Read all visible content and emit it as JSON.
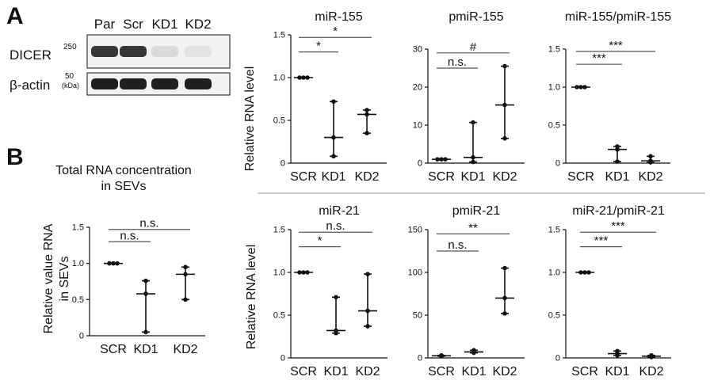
{
  "panel_labels": {
    "a": "A",
    "b": "B"
  },
  "blot": {
    "lane_labels": [
      "Par",
      "Scr",
      "KD1",
      "KD2"
    ],
    "bands": [
      {
        "name": "DICER",
        "marker": "250",
        "intensity": [
          0.85,
          0.85,
          0.12,
          0.08
        ]
      },
      {
        "name": "β-actin",
        "marker": "50",
        "intensity": [
          0.95,
          0.95,
          0.95,
          0.95
        ]
      }
    ],
    "unit": "(kDa)"
  },
  "section_b_title": [
    "Total RNA concentration",
    "in SEVs"
  ],
  "ylabels": {
    "top": "Relative RNA level",
    "bottom": "Relative RNA level",
    "total": [
      "Relative value RNA",
      "in SEVs"
    ]
  },
  "chart_data": [
    {
      "id": "mir155",
      "type": "scatter",
      "title": "miR-155",
      "categories": [
        "SCR",
        "KD1",
        "KD2"
      ],
      "ylim": [
        0,
        1.5
      ],
      "yticks": [
        0,
        0.5,
        1.0,
        1.5
      ],
      "ytick_labels": [
        "0",
        "0.5",
        "1.0",
        "1.5"
      ],
      "series": [
        {
          "name": "SCR",
          "values": [
            1.0,
            1.0,
            1.0
          ],
          "median": 1.0,
          "min": 1.0,
          "max": 1.0
        },
        {
          "name": "KD1",
          "values": [
            0.08,
            0.3,
            0.72
          ],
          "median": 0.3,
          "min": 0.08,
          "max": 0.72
        },
        {
          "name": "KD2",
          "values": [
            0.35,
            0.57,
            0.62
          ],
          "median": 0.57,
          "min": 0.35,
          "max": 0.62
        }
      ],
      "significance": [
        {
          "from": "SCR",
          "to": "KD1",
          "label": "*",
          "level": 1.3
        },
        {
          "from": "SCR",
          "to": "KD2",
          "label": "*",
          "level": 1.47
        }
      ]
    },
    {
      "id": "pmir155",
      "type": "scatter",
      "title": "pmiR-155",
      "categories": [
        "SCR",
        "KD1",
        "KD2"
      ],
      "ylim": [
        0,
        30
      ],
      "yticks": [
        0,
        10,
        20,
        30
      ],
      "ytick_labels": [
        "0",
        "10",
        "20",
        "30"
      ],
      "series": [
        {
          "name": "SCR",
          "values": [
            1.0,
            1.0,
            1.0
          ],
          "median": 1.0,
          "min": 1.0,
          "max": 1.0
        },
        {
          "name": "KD1",
          "values": [
            0.3,
            1.5,
            10.7
          ],
          "median": 1.5,
          "min": 0.3,
          "max": 10.7
        },
        {
          "name": "KD2",
          "values": [
            6.5,
            15.3,
            25.5
          ],
          "median": 15.3,
          "min": 6.5,
          "max": 25.5
        }
      ],
      "significance": [
        {
          "from": "SCR",
          "to": "KD1",
          "label": "n.s.",
          "level": 25.0
        },
        {
          "from": "SCR",
          "to": "KD2",
          "label": "#",
          "level": 29.0
        }
      ]
    },
    {
      "id": "ratio155",
      "type": "scatter",
      "title": "miR-155/pmiR-155",
      "categories": [
        "SCR",
        "KD1",
        "KD2"
      ],
      "ylim": [
        0,
        1.5
      ],
      "yticks": [
        0,
        0.5,
        1.0,
        1.5
      ],
      "ytick_labels": [
        "0",
        "0.5",
        "1.0",
        "1.5"
      ],
      "series": [
        {
          "name": "SCR",
          "values": [
            1.0,
            1.0,
            1.0
          ],
          "median": 1.0,
          "min": 1.0,
          "max": 1.0
        },
        {
          "name": "KD1",
          "values": [
            0.02,
            0.18,
            0.22
          ],
          "median": 0.18,
          "min": 0.02,
          "max": 0.22
        },
        {
          "name": "KD2",
          "values": [
            0.01,
            0.03,
            0.09
          ],
          "median": 0.03,
          "min": 0.01,
          "max": 0.09
        }
      ],
      "significance": [
        {
          "from": "SCR",
          "to": "KD1",
          "label": "***",
          "level": 1.3
        },
        {
          "from": "SCR",
          "to": "KD2",
          "label": "***",
          "level": 1.47
        }
      ]
    },
    {
      "id": "total",
      "type": "scatter",
      "title": "",
      "categories": [
        "SCR",
        "KD1",
        "KD2"
      ],
      "ylim": [
        0,
        1.5
      ],
      "yticks": [
        0,
        0.5,
        1.0,
        1.5
      ],
      "ytick_labels": [
        "0",
        "0.5",
        "1.0",
        "1.5"
      ],
      "series": [
        {
          "name": "SCR",
          "values": [
            1.0,
            1.0,
            1.0
          ],
          "median": 1.0,
          "min": 1.0,
          "max": 1.0
        },
        {
          "name": "KD1",
          "values": [
            0.05,
            0.58,
            0.76
          ],
          "median": 0.58,
          "min": 0.05,
          "max": 0.76
        },
        {
          "name": "KD2",
          "values": [
            0.5,
            0.85,
            0.95
          ],
          "median": 0.85,
          "min": 0.5,
          "max": 0.95
        }
      ],
      "significance": [
        {
          "from": "SCR",
          "to": "KD1",
          "label": "n.s.",
          "level": 1.3
        },
        {
          "from": "SCR",
          "to": "KD2",
          "label": "n.s.",
          "level": 1.47
        }
      ]
    },
    {
      "id": "mir21",
      "type": "scatter",
      "title": "miR-21",
      "categories": [
        "SCR",
        "KD1",
        "KD2"
      ],
      "ylim": [
        0,
        1.5
      ],
      "yticks": [
        0,
        0.5,
        1.0,
        1.5
      ],
      "ytick_labels": [
        "0",
        "0.5",
        "1.0",
        "1.5"
      ],
      "series": [
        {
          "name": "SCR",
          "values": [
            1.0,
            1.0,
            1.0
          ],
          "median": 1.0,
          "min": 1.0,
          "max": 1.0
        },
        {
          "name": "KD1",
          "values": [
            0.29,
            0.32,
            0.71
          ],
          "median": 0.32,
          "min": 0.29,
          "max": 0.71
        },
        {
          "name": "KD2",
          "values": [
            0.37,
            0.55,
            0.98
          ],
          "median": 0.55,
          "min": 0.37,
          "max": 0.98
        }
      ],
      "significance": [
        {
          "from": "SCR",
          "to": "KD1",
          "label": "*",
          "level": 1.3
        },
        {
          "from": "SCR",
          "to": "KD2",
          "label": "n.s.",
          "level": 1.47
        }
      ]
    },
    {
      "id": "pmir21",
      "type": "scatter",
      "title": "pmiR-21",
      "categories": [
        "SCR",
        "KD1",
        "KD2"
      ],
      "ylim": [
        0,
        150
      ],
      "yticks": [
        0,
        50,
        100,
        150
      ],
      "ytick_labels": [
        "0",
        "50",
        "100",
        "150"
      ],
      "series": [
        {
          "name": "SCR",
          "values": [
            2,
            2.5,
            3
          ],
          "median": 2.5,
          "min": 2,
          "max": 3
        },
        {
          "name": "KD1",
          "values": [
            6,
            7,
            9
          ],
          "median": 7,
          "min": 6,
          "max": 9
        },
        {
          "name": "KD2",
          "values": [
            52,
            70,
            105
          ],
          "median": 70,
          "min": 52,
          "max": 105
        }
      ],
      "significance": [
        {
          "from": "SCR",
          "to": "KD1",
          "label": "n.s.",
          "level": 125
        },
        {
          "from": "SCR",
          "to": "KD2",
          "label": "**",
          "level": 145
        }
      ]
    },
    {
      "id": "ratio21",
      "type": "scatter",
      "title": "miR-21/pmiR-21",
      "categories": [
        "SCR",
        "KD1",
        "KD2"
      ],
      "ylim": [
        0,
        1.5
      ],
      "yticks": [
        0,
        0.5,
        1.0,
        1.5
      ],
      "ytick_labels": [
        "0",
        "0.5",
        "1.0",
        "1.5"
      ],
      "series": [
        {
          "name": "SCR",
          "values": [
            1.0,
            1.0,
            1.0
          ],
          "median": 1.0,
          "min": 1.0,
          "max": 1.0
        },
        {
          "name": "KD1",
          "values": [
            0.03,
            0.05,
            0.08
          ],
          "median": 0.05,
          "min": 0.03,
          "max": 0.08
        },
        {
          "name": "KD2",
          "values": [
            0.01,
            0.02,
            0.03
          ],
          "median": 0.02,
          "min": 0.01,
          "max": 0.03
        }
      ],
      "significance": [
        {
          "from": "SCR",
          "to": "KD1",
          "label": "***",
          "level": 1.3
        },
        {
          "from": "SCR",
          "to": "KD2",
          "label": "***",
          "level": 1.47
        }
      ]
    }
  ]
}
